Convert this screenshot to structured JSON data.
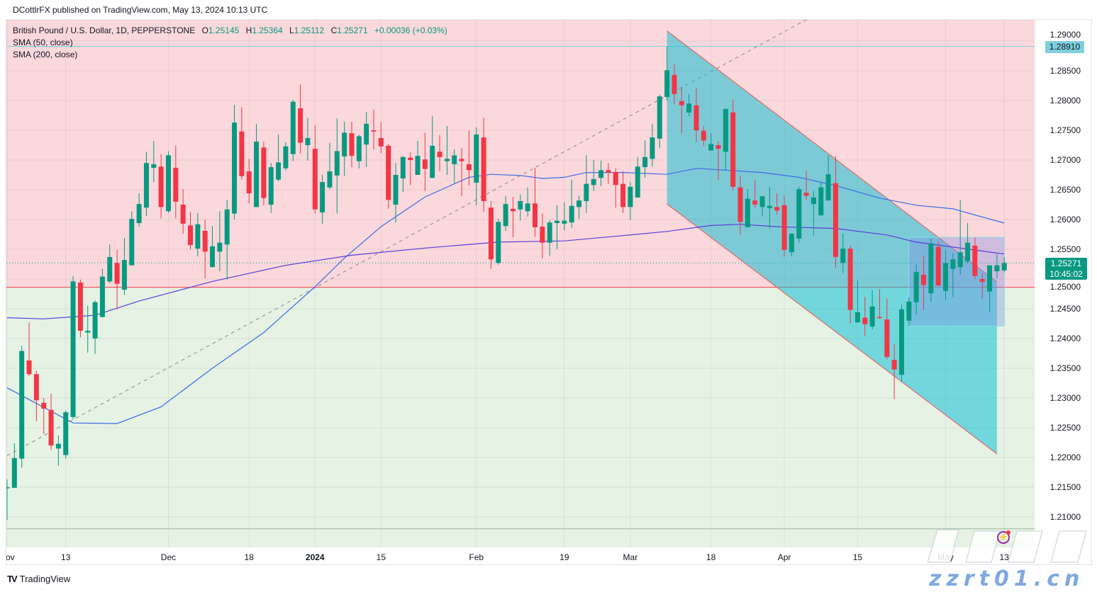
{
  "publisher_line": "DCottlrFX published on TradingView.com, May 13, 2024 10:13 UTC",
  "legend": {
    "symbol": "British Pound / U.S. Dollar, 1D, PEPPERSTONE",
    "o_label": "O",
    "o": "1.25145",
    "h_label": "H",
    "h": "1.25364",
    "l_label": "L",
    "l": "1.25112",
    "c_label": "C",
    "c": "1.25271",
    "change": "+0.00036 (+0.03%)",
    "sma50": "SMA (50, close)",
    "sma200": "SMA (200, close)"
  },
  "price_labels": {
    "horizontal_level": "1.28910",
    "current_price": "1.25271",
    "countdown": "10:45:02"
  },
  "branding": {
    "logo": "TV",
    "name": "TradingView"
  },
  "watermark": {
    "cjk": "海马财经",
    "url": "zzrt01.cn"
  },
  "colors": {
    "up": "#089981",
    "down": "#f23645",
    "sma50": "#3d6be8",
    "sma200": "#5a3fd8",
    "zone_above": "#fad8db",
    "zone_below": "#e5f2e4",
    "channel_fill": "#00bcd4",
    "channel_edge": "#e06b6b",
    "box_fill": "#7c8de6",
    "box_edge": "#80deea",
    "level_line": "#7fcfdc",
    "support_line": "#f23645"
  },
  "chart_data": {
    "type": "candlestick",
    "title": "",
    "xlabel": "",
    "ylabel": "",
    "ylim": [
      1.2055,
      1.2937
    ],
    "grid": true,
    "y_ticks": [
      "1.21000",
      "1.21500",
      "1.22000",
      "1.22500",
      "1.23000",
      "1.23500",
      "1.24000",
      "1.24500",
      "1.25000",
      "1.25500",
      "1.26000",
      "1.26500",
      "1.27000",
      "1.27500",
      "1.28000",
      "1.28500",
      "1.29000"
    ],
    "x_ticks": [
      {
        "label": "Nov",
        "date": "2023-11-01"
      },
      {
        "label": "13",
        "date": "2023-11-13"
      },
      {
        "label": "Dec",
        "date": "2023-12-01"
      },
      {
        "label": "18",
        "date": "2023-12-18"
      },
      {
        "label": "2024",
        "date": "2024-01-02",
        "bold": true
      },
      {
        "label": "15",
        "date": "2024-01-15"
      },
      {
        "label": "Feb",
        "date": "2024-02-01"
      },
      {
        "label": "19",
        "date": "2024-02-19"
      },
      {
        "label": "Mar",
        "date": "2024-03-01"
      },
      {
        "label": "18",
        "date": "2024-03-18"
      },
      {
        "label": "Apr",
        "date": "2024-04-01"
      },
      {
        "label": "15",
        "date": "2024-04-15"
      },
      {
        "label": "May",
        "date": "2024-05-01"
      },
      {
        "label": "13",
        "date": "2024-05-13"
      }
    ],
    "candles_fields": [
      "date",
      "open",
      "high",
      "low",
      "close"
    ],
    "candles": [
      [
        "2023-11-01",
        1.2148,
        1.2163,
        1.2095,
        1.215
      ],
      [
        "2023-11-02",
        1.2149,
        1.2224,
        1.2149,
        1.2199
      ],
      [
        "2023-11-03",
        1.2198,
        1.2388,
        1.2183,
        1.2379
      ],
      [
        "2023-11-06",
        1.2363,
        1.2427,
        1.2337,
        1.234
      ],
      [
        "2023-11-07",
        1.234,
        1.2346,
        1.2261,
        1.2296
      ],
      [
        "2023-11-08",
        1.2292,
        1.23,
        1.224,
        1.2282
      ],
      [
        "2023-11-09",
        1.228,
        1.2307,
        1.2212,
        1.222
      ],
      [
        "2023-11-10",
        1.2215,
        1.2237,
        1.2186,
        1.2223
      ],
      [
        "2023-11-13",
        1.2204,
        1.2279,
        1.2198,
        1.2276
      ],
      [
        "2023-11-14",
        1.2268,
        1.2505,
        1.2264,
        1.2496
      ],
      [
        "2023-11-15",
        1.2494,
        1.2499,
        1.2402,
        1.2413
      ],
      [
        "2023-11-16",
        1.241,
        1.2455,
        1.2376,
        1.2413
      ],
      [
        "2023-11-17",
        1.24,
        1.2464,
        1.2374,
        1.2461
      ],
      [
        "2023-11-20",
        1.2436,
        1.2517,
        1.2436,
        1.2504
      ],
      [
        "2023-11-21",
        1.2496,
        1.2558,
        1.2493,
        1.2537
      ],
      [
        "2023-11-22",
        1.2527,
        1.2549,
        1.2449,
        1.2492
      ],
      [
        "2023-11-23",
        1.2482,
        1.2569,
        1.2473,
        1.2532
      ],
      [
        "2023-11-24",
        1.2523,
        1.2614,
        1.2523,
        1.2601
      ],
      [
        "2023-11-27",
        1.2594,
        1.2644,
        1.2588,
        1.2626
      ],
      [
        "2023-11-28",
        1.262,
        1.2714,
        1.2606,
        1.2695
      ],
      [
        "2023-11-29",
        1.2687,
        1.2732,
        1.2663,
        1.2693
      ],
      [
        "2023-11-30",
        1.2689,
        1.271,
        1.2602,
        1.2621
      ],
      [
        "2023-12-01",
        1.2614,
        1.2715,
        1.2611,
        1.2708
      ],
      [
        "2023-12-04",
        1.2687,
        1.2724,
        1.2602,
        1.263
      ],
      [
        "2023-12-05",
        1.2625,
        1.2651,
        1.2576,
        1.2593
      ],
      [
        "2023-12-06",
        1.259,
        1.2613,
        1.255,
        1.2557
      ],
      [
        "2023-12-07",
        1.2551,
        1.2611,
        1.2538,
        1.2592
      ],
      [
        "2023-12-08",
        1.2581,
        1.26,
        1.2501,
        1.2546
      ],
      [
        "2023-12-11",
        1.252,
        1.2589,
        1.252,
        1.2555
      ],
      [
        "2023-12-12",
        1.2546,
        1.2614,
        1.2513,
        1.2561
      ],
      [
        "2023-12-13",
        1.2558,
        1.2633,
        1.2499,
        1.2617
      ],
      [
        "2023-12-14",
        1.261,
        1.2793,
        1.26,
        1.2763
      ],
      [
        "2023-12-15",
        1.2748,
        1.2789,
        1.2667,
        1.2673
      ],
      [
        "2023-12-18",
        1.2681,
        1.2702,
        1.2627,
        1.2644
      ],
      [
        "2023-12-19",
        1.2621,
        1.2761,
        1.2621,
        1.2731
      ],
      [
        "2023-12-20",
        1.2721,
        1.2731,
        1.2624,
        1.2636
      ],
      [
        "2023-12-21",
        1.2625,
        1.2695,
        1.2611,
        1.2688
      ],
      [
        "2023-12-22",
        1.2667,
        1.2743,
        1.2664,
        1.2696
      ],
      [
        "2023-12-26",
        1.2686,
        1.273,
        1.2682,
        1.2723
      ],
      [
        "2023-12-27",
        1.271,
        1.2801,
        1.2698,
        1.2798
      ],
      [
        "2023-12-28",
        1.2787,
        1.2827,
        1.2711,
        1.2729
      ],
      [
        "2023-12-29",
        1.2725,
        1.2771,
        1.2699,
        1.2737
      ],
      [
        "2024-01-02",
        1.2719,
        1.2758,
        1.261,
        1.2617
      ],
      [
        "2024-01-03",
        1.2612,
        1.2675,
        1.2593,
        1.2663
      ],
      [
        "2024-01-04",
        1.2654,
        1.2729,
        1.2651,
        1.2681
      ],
      [
        "2024-01-05",
        1.2674,
        1.277,
        1.261,
        1.2715
      ],
      [
        "2024-01-08",
        1.2706,
        1.2765,
        1.2673,
        1.2746
      ],
      [
        "2024-01-09",
        1.2745,
        1.2764,
        1.2688,
        1.2707
      ],
      [
        "2024-01-10",
        1.2698,
        1.2743,
        1.2686,
        1.274
      ],
      [
        "2024-01-11",
        1.2726,
        1.2781,
        1.2689,
        1.2761
      ],
      [
        "2024-01-12",
        1.275,
        1.2785,
        1.2718,
        1.2748
      ],
      [
        "2024-01-15",
        1.2737,
        1.2764,
        1.2712,
        1.2723
      ],
      [
        "2024-01-16",
        1.2724,
        1.2727,
        1.2618,
        1.2633
      ],
      [
        "2024-01-17",
        1.2625,
        1.2695,
        1.2595,
        1.2675
      ],
      [
        "2024-01-18",
        1.2669,
        1.2707,
        1.2646,
        1.2705
      ],
      [
        "2024-01-19",
        1.2704,
        1.2713,
        1.2658,
        1.27
      ],
      [
        "2024-01-22",
        1.2675,
        1.2732,
        1.2675,
        1.2707
      ],
      [
        "2024-01-23",
        1.2701,
        1.2746,
        1.2648,
        1.2685
      ],
      [
        "2024-01-24",
        1.267,
        1.2774,
        1.267,
        1.2724
      ],
      [
        "2024-01-25",
        1.2714,
        1.2742,
        1.2681,
        1.2705
      ],
      [
        "2024-01-26",
        1.2698,
        1.2757,
        1.2675,
        1.2702
      ],
      [
        "2024-01-29",
        1.2693,
        1.2718,
        1.2661,
        1.2708
      ],
      [
        "2024-01-30",
        1.2702,
        1.272,
        1.2639,
        1.2698
      ],
      [
        "2024-01-31",
        1.2693,
        1.275,
        1.2657,
        1.2683
      ],
      [
        "2024-02-01",
        1.2662,
        1.2755,
        1.2624,
        1.2743
      ],
      [
        "2024-02-02",
        1.2738,
        1.2771,
        1.2613,
        1.2631
      ],
      [
        "2024-02-05",
        1.262,
        1.2631,
        1.2517,
        1.2533
      ],
      [
        "2024-02-06",
        1.2527,
        1.2601,
        1.2524,
        1.2596
      ],
      [
        "2024-02-07",
        1.2589,
        1.264,
        1.2581,
        1.2626
      ],
      [
        "2024-02-08",
        1.2618,
        1.2638,
        1.257,
        1.2614
      ],
      [
        "2024-02-09",
        1.2617,
        1.2642,
        1.2598,
        1.2631
      ],
      [
        "2024-02-12",
        1.2614,
        1.2654,
        1.2605,
        1.2627
      ],
      [
        "2024-02-13",
        1.2627,
        1.2687,
        1.2571,
        1.2587
      ],
      [
        "2024-02-14",
        1.2588,
        1.261,
        1.2535,
        1.2561
      ],
      [
        "2024-02-15",
        1.2561,
        1.2599,
        1.2539,
        1.2595
      ],
      [
        "2024-02-16",
        1.2594,
        1.2624,
        1.255,
        1.2598
      ],
      [
        "2024-02-19",
        1.2593,
        1.2629,
        1.2582,
        1.2598
      ],
      [
        "2024-02-20",
        1.2595,
        1.2667,
        1.2586,
        1.2623
      ],
      [
        "2024-02-21",
        1.2621,
        1.264,
        1.2601,
        1.2632
      ],
      [
        "2024-02-22",
        1.2631,
        1.2708,
        1.2611,
        1.266
      ],
      [
        "2024-02-23",
        1.2658,
        1.27,
        1.2648,
        1.2668
      ],
      [
        "2024-02-26",
        1.267,
        1.2699,
        1.2656,
        1.2683
      ],
      [
        "2024-02-27",
        1.2683,
        1.2695,
        1.266,
        1.2679
      ],
      [
        "2024-02-28",
        1.268,
        1.2686,
        1.262,
        1.2658
      ],
      [
        "2024-02-29",
        1.266,
        1.2681,
        1.2611,
        1.2621
      ],
      [
        "2024-03-01",
        1.2621,
        1.2663,
        1.2599,
        1.2655
      ],
      [
        "2024-03-04",
        1.2637,
        1.2705,
        1.2637,
        1.2689
      ],
      [
        "2024-03-05",
        1.2688,
        1.2733,
        1.267,
        1.2705
      ],
      [
        "2024-03-06",
        1.2702,
        1.2761,
        1.2689,
        1.2738
      ],
      [
        "2024-03-07",
        1.2736,
        1.281,
        1.272,
        1.2807
      ],
      [
        "2024-03-08",
        1.2806,
        1.2891,
        1.28,
        1.2851
      ],
      [
        "2024-03-11",
        1.2843,
        1.2861,
        1.2794,
        1.2811
      ],
      [
        "2024-03-12",
        1.2799,
        1.2823,
        1.2745,
        1.2792
      ],
      [
        "2024-03-13",
        1.278,
        1.2811,
        1.2774,
        1.2795
      ],
      [
        "2024-03-14",
        1.2792,
        1.2821,
        1.273,
        1.275
      ],
      [
        "2024-03-15",
        1.2749,
        1.2757,
        1.2724,
        1.2733
      ],
      [
        "2024-03-18",
        1.2716,
        1.2745,
        1.2716,
        1.2727
      ],
      [
        "2024-03-19",
        1.2725,
        1.2732,
        1.2667,
        1.2719
      ],
      [
        "2024-03-20",
        1.2714,
        1.2786,
        1.2683,
        1.2786
      ],
      [
        "2024-03-21",
        1.278,
        1.2802,
        1.2649,
        1.2655
      ],
      [
        "2024-03-22",
        1.2654,
        1.2674,
        1.2574,
        1.2596
      ],
      [
        "2024-03-25",
        1.2587,
        1.2651,
        1.2587,
        1.2635
      ],
      [
        "2024-03-26",
        1.2632,
        1.2667,
        1.262,
        1.2625
      ],
      [
        "2024-03-27",
        1.2621,
        1.264,
        1.2605,
        1.2639
      ],
      [
        "2024-03-28",
        1.2619,
        1.2654,
        1.2585,
        1.2623
      ],
      [
        "2024-03-29",
        1.2621,
        1.2644,
        1.2608,
        1.2615
      ],
      [
        "2024-04-01",
        1.2624,
        1.264,
        1.2538,
        1.2549
      ],
      [
        "2024-04-02",
        1.2545,
        1.2577,
        1.2538,
        1.2576
      ],
      [
        "2024-04-03",
        1.2568,
        1.2655,
        1.2561,
        1.2651
      ],
      [
        "2024-04-04",
        1.2645,
        1.2682,
        1.2633,
        1.264
      ],
      [
        "2024-04-05",
        1.2626,
        1.2648,
        1.2573,
        1.2637
      ],
      [
        "2024-04-08",
        1.2607,
        1.2663,
        1.2607,
        1.2654
      ],
      [
        "2024-04-09",
        1.2632,
        1.2708,
        1.2632,
        1.2676
      ],
      [
        "2024-04-10",
        1.2661,
        1.2707,
        1.2519,
        1.2537
      ],
      [
        "2024-04-11",
        1.2527,
        1.2577,
        1.251,
        1.2551
      ],
      [
        "2024-04-12",
        1.2551,
        1.2557,
        1.2425,
        1.2448
      ],
      [
        "2024-04-15",
        1.2427,
        1.2498,
        1.2427,
        1.2444
      ],
      [
        "2024-04-16",
        1.2435,
        1.247,
        1.2404,
        1.2424
      ],
      [
        "2024-04-17",
        1.242,
        1.2481,
        1.2415,
        1.2454
      ],
      [
        "2024-04-18",
        1.2436,
        1.2483,
        1.2433,
        1.2435
      ],
      [
        "2024-04-19",
        1.2432,
        1.2467,
        1.2365,
        1.2369
      ],
      [
        "2024-04-22",
        1.2364,
        1.239,
        1.2298,
        1.2348
      ],
      [
        "2024-04-23",
        1.2339,
        1.2457,
        1.2327,
        1.2449
      ],
      [
        "2024-04-24",
        1.243,
        1.2469,
        1.2421,
        1.2462
      ],
      [
        "2024-04-25",
        1.2461,
        1.2525,
        1.244,
        1.2512
      ],
      [
        "2024-04-26",
        1.2507,
        1.2539,
        1.2448,
        1.249
      ],
      [
        "2024-04-29",
        1.2476,
        1.2568,
        1.2462,
        1.256
      ],
      [
        "2024-04-30",
        1.2554,
        1.2563,
        1.2489,
        1.2489
      ],
      [
        "2024-05-01",
        1.248,
        1.2549,
        1.2465,
        1.2527
      ],
      [
        "2024-05-02",
        1.2517,
        1.2543,
        1.247,
        1.2533
      ],
      [
        "2024-05-03",
        1.252,
        1.2633,
        1.2507,
        1.2545
      ],
      [
        "2024-05-06",
        1.253,
        1.2594,
        1.2526,
        1.2561
      ],
      [
        "2024-05-07",
        1.2556,
        1.257,
        1.25,
        1.2505
      ],
      [
        "2024-05-08",
        1.25,
        1.251,
        1.2467,
        1.2495
      ],
      [
        "2024-05-09",
        1.2479,
        1.2523,
        1.2444,
        1.2523
      ],
      [
        "2024-05-10",
        1.2513,
        1.2542,
        1.2501,
        1.2523
      ],
      [
        "2024-05-13",
        1.25145,
        1.25364,
        1.25112,
        1.25271
      ]
    ],
    "sma50": [
      [
        "2023-11-01",
        1.2317
      ],
      [
        "2023-11-14",
        1.2258
      ],
      [
        "2023-11-22",
        1.2257
      ],
      [
        "2023-11-30",
        1.2285
      ],
      [
        "2023-12-11",
        1.235
      ],
      [
        "2023-12-20",
        1.241
      ],
      [
        "2024-01-02",
        1.2487
      ],
      [
        "2024-01-08",
        1.2535
      ],
      [
        "2024-01-15",
        1.2588
      ],
      [
        "2024-01-23",
        1.2638
      ],
      [
        "2024-01-31",
        1.2671
      ],
      [
        "2024-02-05",
        1.2676
      ],
      [
        "2024-02-09",
        1.2674
      ],
      [
        "2024-02-14",
        1.2669
      ],
      [
        "2024-02-19",
        1.2671
      ],
      [
        "2024-02-22",
        1.2679
      ],
      [
        "2024-02-29",
        1.2679
      ],
      [
        "2024-03-08",
        1.2676
      ],
      [
        "2024-03-14",
        1.2686
      ],
      [
        "2024-03-20",
        1.2683
      ],
      [
        "2024-03-27",
        1.2679
      ],
      [
        "2024-04-03",
        1.2671
      ],
      [
        "2024-04-10",
        1.2657
      ],
      [
        "2024-04-18",
        1.2636
      ],
      [
        "2024-04-25",
        1.2624
      ],
      [
        "2024-05-02",
        1.2618
      ],
      [
        "2024-05-13",
        1.2594
      ]
    ],
    "sma200": [
      [
        "2023-11-01",
        1.2435
      ],
      [
        "2023-11-08",
        1.2433
      ],
      [
        "2023-11-17",
        1.2439
      ],
      [
        "2023-11-27",
        1.2463
      ],
      [
        "2023-12-11",
        1.2496
      ],
      [
        "2023-12-26",
        1.2523
      ],
      [
        "2024-01-09",
        1.254
      ],
      [
        "2024-01-23",
        1.2552
      ],
      [
        "2024-02-06",
        1.2562
      ],
      [
        "2024-02-19",
        1.2564
      ],
      [
        "2024-02-29",
        1.2573
      ],
      [
        "2024-03-08",
        1.258
      ],
      [
        "2024-03-18",
        1.259
      ],
      [
        "2024-03-22",
        1.2592
      ],
      [
        "2024-03-29",
        1.2588
      ],
      [
        "2024-04-10",
        1.2585
      ],
      [
        "2024-04-19",
        1.2574
      ],
      [
        "2024-04-25",
        1.2562
      ],
      [
        "2024-05-13",
        1.2542
      ]
    ],
    "drawings": {
      "horizontal_level": 1.2891,
      "support_level": 1.2486,
      "bottom_level": 1.208,
      "current_price": 1.25271,
      "trendline": [
        [
          "2023-11-01",
          1.2203
        ],
        [
          "2024-04-04",
          1.2936
        ]
      ],
      "channel": {
        "start": "2024-03-08",
        "end": "2024-05-10",
        "upper": [
          1.2917,
          1.2495
        ],
        "lower": [
          1.2626,
          1.2206
        ]
      },
      "range_box": {
        "start": "2024-04-24",
        "end": "2024-05-13",
        "top": 1.257,
        "bottom": 1.2421
      }
    }
  }
}
